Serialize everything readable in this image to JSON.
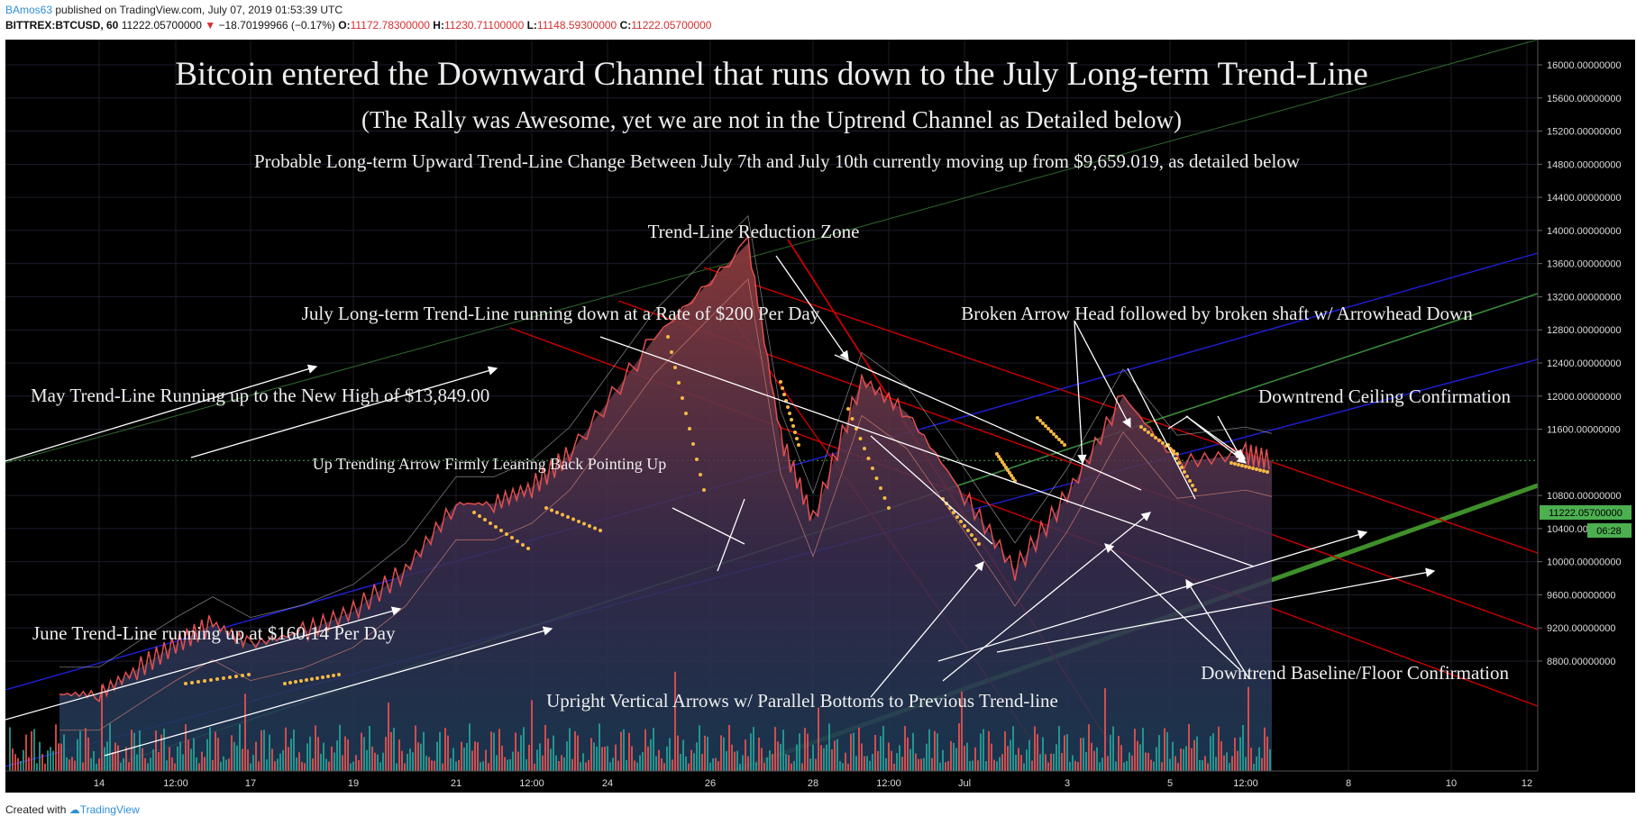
{
  "header": {
    "author": "BAmos63",
    "published_text": "published on TradingView.com, July 07, 2019 01:53:39 UTC",
    "symbol": "BITTREX:BTCUSD, 60",
    "last": "11222.05700000",
    "change": "−18.70199966 (−0.17%)",
    "o_label": "O:",
    "o": "11172.78300000",
    "h_label": "H:",
    "h": "11230.71100000",
    "l_label": "L:",
    "l": "11148.59300000",
    "c_label": "C:",
    "c": "11222.05700000"
  },
  "footer": {
    "created_with": "Created with",
    "brand": "TradingView"
  },
  "colors": {
    "background": "#000000",
    "grid": "#1c1c2a",
    "candle_up": "#e05050",
    "volume_up": "#26a69a",
    "volume_down": "#ef5350",
    "price_tag": "#4caf50",
    "dots": "#f5b942",
    "blue_channel": "#2020ff",
    "red_channel": "#ff0000",
    "green_channel": "#4caf50",
    "annotation": "#eeeeee"
  },
  "chart_data": {
    "type": "area",
    "title": "Bitcoin entered the Downward Channel that runs down to the July Long-term Trend-Line",
    "subtitle": "(The Rally was Awesome, yet we are not in the Uptrend Channel as Detailed below)",
    "subtitle2": "Probable Long-term Upward Trend-Line Change Between July 7th and July 10th currently moving up from $9,659.019, as detailed below",
    "x_ticks": [
      "14",
      "12:00",
      "17",
      "19",
      "21",
      "12:00",
      "24",
      "26",
      "28",
      "12:00",
      "Jul",
      "3",
      "5",
      "12:00",
      "8",
      "10",
      "12"
    ],
    "y_ticks": [
      "16000.00000000",
      "15600.00000000",
      "15200.00000000",
      "14800.00000000",
      "14400.00000000",
      "14000.00000000",
      "13600.00000000",
      "13200.00000000",
      "12800.00000000",
      "12400.00000000",
      "12000.00000000",
      "11600.00000000",
      "10800.00000000",
      "10400.00000000",
      "10000.00000000",
      "9600.00000000",
      "9200.00000000",
      "8800.00000000"
    ],
    "ylim": [
      8500,
      16350
    ],
    "price_label": "11222.05700000",
    "countdown": "06:28",
    "price_series": [
      {
        "t": "Jun 13",
        "v": 8400
      },
      {
        "t": "Jun 14",
        "v": 8400
      },
      {
        "t": "Jun 15",
        "v": 8700
      },
      {
        "t": "Jun 16",
        "v": 9000
      },
      {
        "t": "Jun 17",
        "v": 9250
      },
      {
        "t": "Jun 18",
        "v": 9000
      },
      {
        "t": "Jun 19",
        "v": 9150
      },
      {
        "t": "Jun 20",
        "v": 9400
      },
      {
        "t": "Jun 21",
        "v": 9900
      },
      {
        "t": "Jun 22",
        "v": 10700
      },
      {
        "t": "Jun 23",
        "v": 10700
      },
      {
        "t": "Jun 24",
        "v": 10900
      },
      {
        "t": "Jun 25",
        "v": 11300
      },
      {
        "t": "Jun 26",
        "v": 12700
      },
      {
        "t": "Jun 26 12:00",
        "v": 13849
      },
      {
        "t": "Jun 27",
        "v": 11500
      },
      {
        "t": "Jun 28",
        "v": 10500
      },
      {
        "t": "Jun 29",
        "v": 12200
      },
      {
        "t": "Jun 30",
        "v": 11800
      },
      {
        "t": "Jul 1",
        "v": 10800
      },
      {
        "t": "Jul 2",
        "v": 9900
      },
      {
        "t": "Jul 3",
        "v": 10800
      },
      {
        "t": "Jul 4",
        "v": 12000
      },
      {
        "t": "Jul 5",
        "v": 11200
      },
      {
        "t": "Jul 6",
        "v": 11300
      },
      {
        "t": "Jul 7",
        "v": 11222
      }
    ]
  },
  "annotations": {
    "reduction_zone": "Trend-Line Reduction Zone",
    "july_trend": "July Long-term Trend-Line running down at a Rate of $200 Per Day",
    "broken_arrow": "Broken Arrow Head followed by broken shaft w/ Arrowhead Down",
    "may_trend": "May Trend-Line Running up to the New High of $13,849.00",
    "ceiling": "Downtrend Ceiling Confirmation",
    "up_arrow": "Up Trending Arrow Firmly Leaning Back Pointing Up",
    "june_trend": "June Trend-Line running up at $160.14 Per Day",
    "baseline": "Downtrend Baseline/Floor Confirmation",
    "vertical_arrows": "Upright Vertical Arrows w/ Parallel Bottoms to Previous Trend-line"
  }
}
